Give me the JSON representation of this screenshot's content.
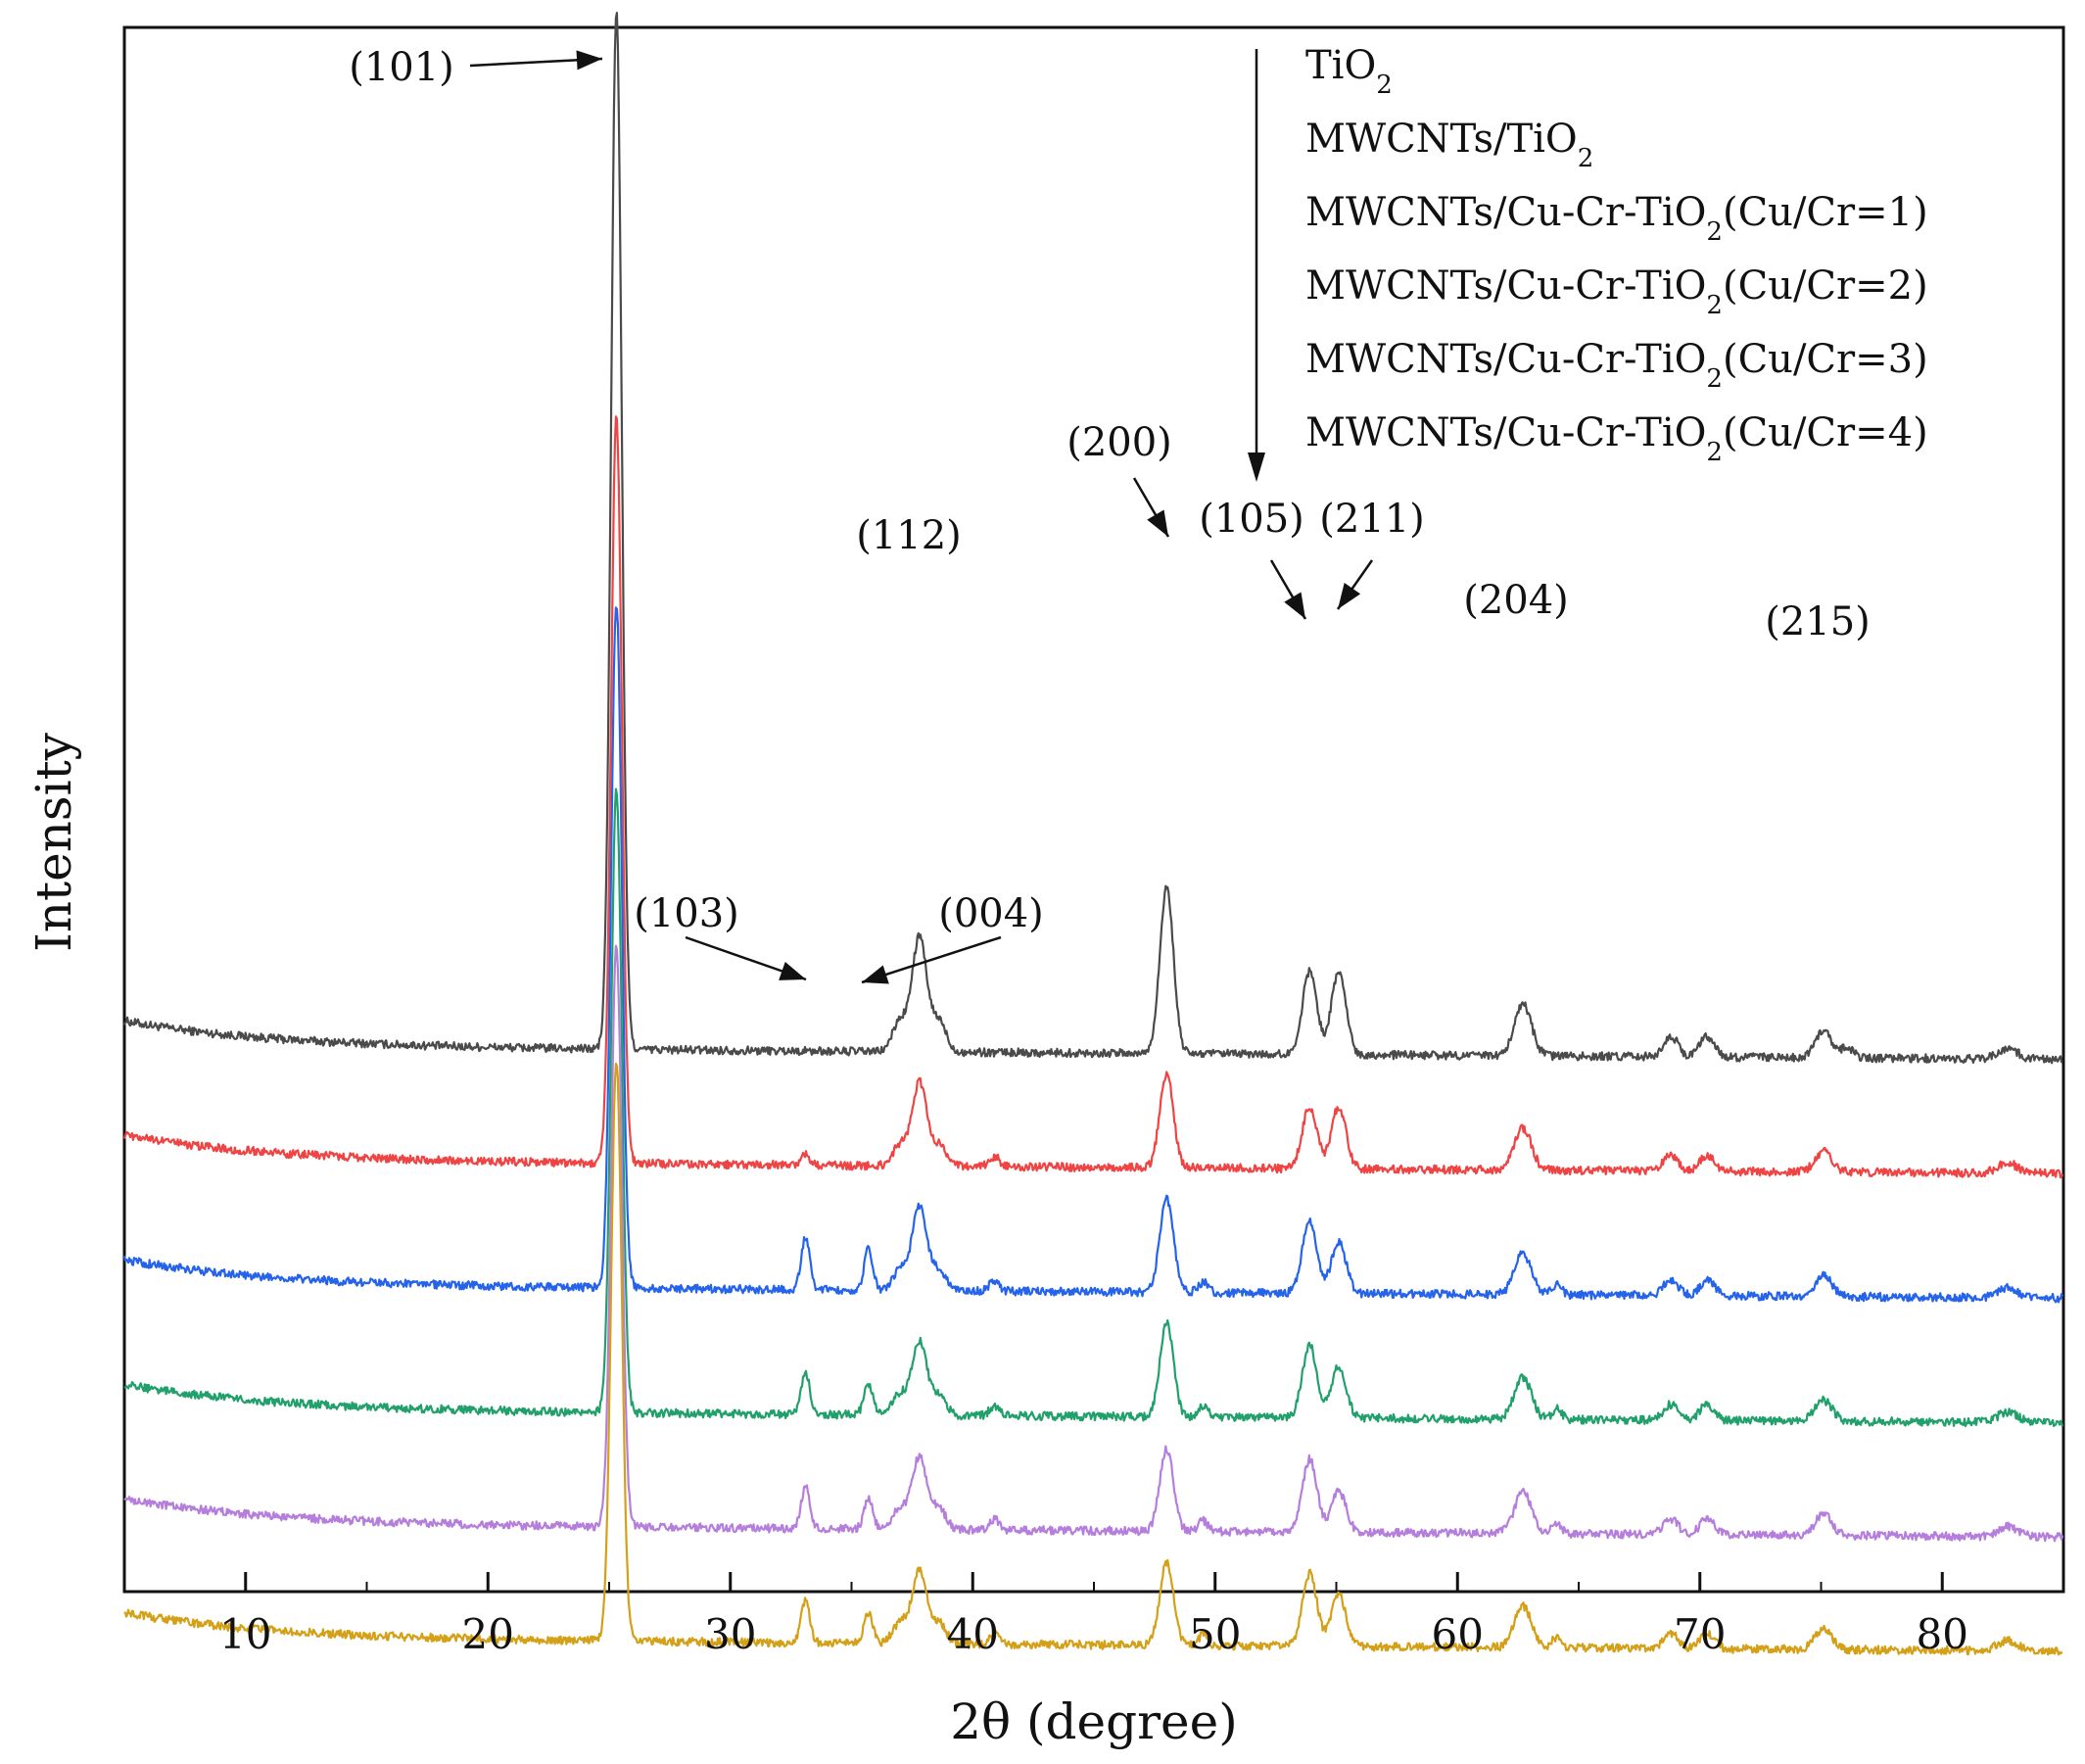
{
  "chart_data": {
    "type": "line",
    "title": "",
    "xlabel": "2θ (degree)",
    "ylabel": "Intensity",
    "xlim": [
      5,
      85
    ],
    "xticks": [
      10,
      20,
      30,
      40,
      50,
      60,
      70,
      80
    ],
    "xtick_labels": [
      "10",
      "20",
      "30",
      "40",
      "50",
      "60",
      "70",
      "80"
    ],
    "yticks": "none",
    "legend_position": "top-right",
    "grid": false,
    "peaks_deg": [
      25.3,
      33.1,
      35.7,
      37.0,
      37.8,
      38.6,
      40.9,
      48.0,
      49.5,
      53.9,
      55.1,
      62.7,
      64.1,
      68.8,
      70.3,
      75.1,
      76.1,
      82.7
    ],
    "series": [
      {
        "name_main": "TiO",
        "name_sub": "2",
        "name_tail": "",
        "color": "#4a4a4a",
        "baseline": 0.52,
        "peak_heights": [
          1.0,
          0,
          0,
          0.03,
          0.11,
          0.03,
          0,
          0.16,
          0,
          0.08,
          0.08,
          0.05,
          0,
          0.02,
          0.02,
          0.025,
          0.01,
          0.01
        ]
      },
      {
        "name_main": "MWCNTs/TiO",
        "name_sub": "2",
        "name_tail": "",
        "color": "#ef4444",
        "baseline": 0.41,
        "peak_heights": [
          0.72,
          0.01,
          0,
          0.02,
          0.08,
          0.02,
          0.01,
          0.09,
          0,
          0.06,
          0.06,
          0.04,
          0,
          0.015,
          0.015,
          0.02,
          0,
          0.01
        ]
      },
      {
        "name_main": "MWCNTs/Cu-Cr-TiO",
        "name_sub": "2",
        "name_tail": "(Cu/Cr=1)",
        "color": "#2563eb",
        "baseline": 0.29,
        "peak_heights": [
          0.66,
          0.05,
          0.04,
          0.02,
          0.08,
          0.02,
          0.01,
          0.09,
          0.01,
          0.07,
          0.05,
          0.04,
          0.01,
          0.015,
          0.015,
          0.02,
          0,
          0.01
        ]
      },
      {
        "name_main": "MWCNTs/Cu-Cr-TiO",
        "name_sub": "2",
        "name_tail": "(Cu/Cr=2)",
        "color": "#22a06b",
        "baseline": 0.17,
        "peak_heights": [
          0.6,
          0.04,
          0.03,
          0.02,
          0.07,
          0.02,
          0.01,
          0.09,
          0.01,
          0.07,
          0.05,
          0.04,
          0.01,
          0.015,
          0.015,
          0.02,
          0,
          0.01
        ]
      },
      {
        "name_main": "MWCNTs/Cu-Cr-TiO",
        "name_sub": "2",
        "name_tail": "(Cu/Cr=3)",
        "color": "#b57edc",
        "baseline": 0.06,
        "peak_heights": [
          0.56,
          0.04,
          0.03,
          0.02,
          0.07,
          0.02,
          0.01,
          0.08,
          0.01,
          0.07,
          0.04,
          0.04,
          0.01,
          0.015,
          0.015,
          0.02,
          0,
          0.01
        ]
      },
      {
        "name_main": "MWCNTs/Cu-Cr-TiO",
        "name_sub": "2",
        "name_tail": "(Cu/Cr=4)",
        "color": "#d4a017",
        "baseline": -0.05,
        "peak_heights": [
          0.56,
          0.04,
          0.03,
          0.02,
          0.07,
          0.02,
          0.01,
          0.08,
          0.01,
          0.07,
          0.05,
          0.04,
          0.01,
          0.015,
          0.015,
          0.02,
          0,
          0.01
        ]
      }
    ],
    "annotations": [
      {
        "label": "(101)",
        "x": 25.3
      },
      {
        "label": "(112)",
        "x": 37.8
      },
      {
        "label": "(200)",
        "x": 48.0
      },
      {
        "label": "(105)",
        "x": 53.9
      },
      {
        "label": "(211)",
        "x": 55.1
      },
      {
        "label": "(204)",
        "x": 62.7
      },
      {
        "label": "(215)",
        "x": 75.1
      },
      {
        "label": "(103)",
        "x": 33.1
      },
      {
        "label": "(004)",
        "x": 35.7
      }
    ]
  }
}
